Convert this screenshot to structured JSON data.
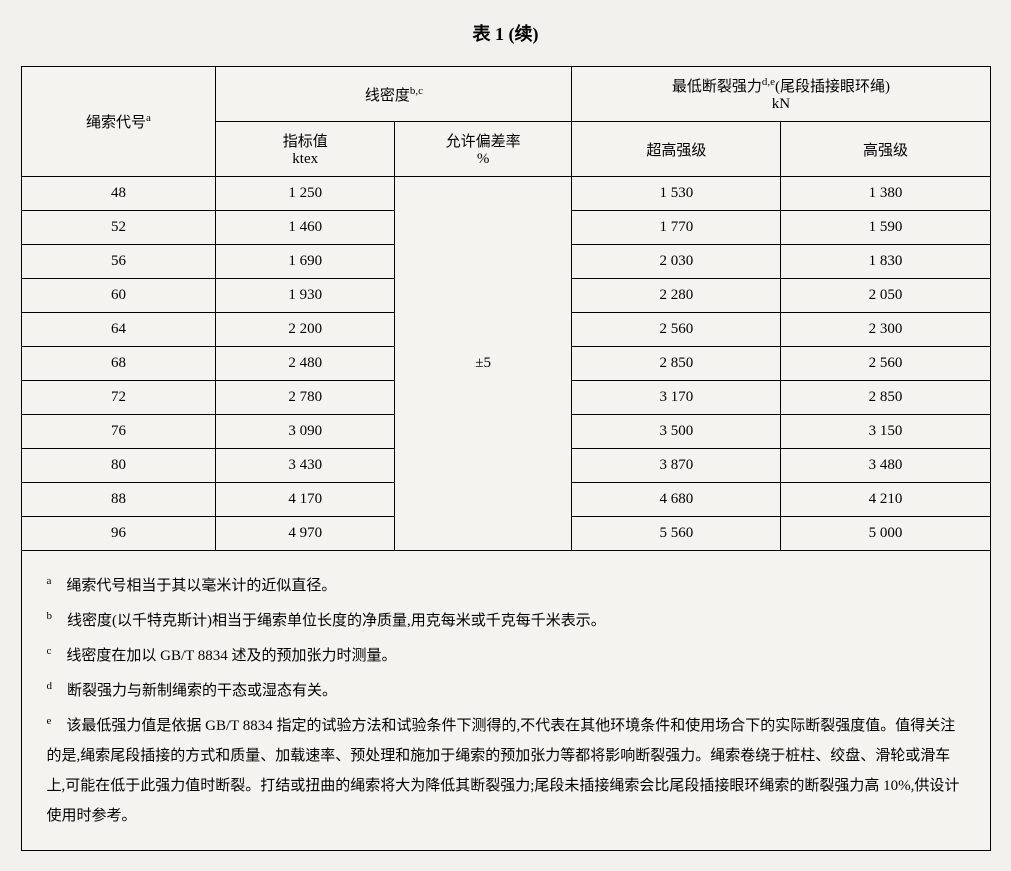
{
  "title": "表 1 (续)",
  "headers": {
    "col1": "绳索代号",
    "col1_sup": "a",
    "col2_group": "线密度",
    "col2_sup": "b,c",
    "col2_sub1": "指标值",
    "col2_sub1_unit": "ktex",
    "col2_sub2": "允许偏差率",
    "col2_sub2_unit": "%",
    "col3_group": "最低断裂强力",
    "col3_sup": "d,e",
    "col3_suffix": "(尾段插接眼环绳)",
    "col3_unit": "kN",
    "col3_sub1": "超高强级",
    "col3_sub2": "高强级"
  },
  "tolerance": "±5",
  "rows": [
    {
      "code": "48",
      "ktex": "1 250",
      "super_high": "1 530",
      "high": "1 380"
    },
    {
      "code": "52",
      "ktex": "1 460",
      "super_high": "1 770",
      "high": "1 590"
    },
    {
      "code": "56",
      "ktex": "1 690",
      "super_high": "2 030",
      "high": "1 830"
    },
    {
      "code": "60",
      "ktex": "1 930",
      "super_high": "2 280",
      "high": "2 050"
    },
    {
      "code": "64",
      "ktex": "2 200",
      "super_high": "2 560",
      "high": "2 300"
    },
    {
      "code": "68",
      "ktex": "2 480",
      "super_high": "2 850",
      "high": "2 560"
    },
    {
      "code": "72",
      "ktex": "2 780",
      "super_high": "3 170",
      "high": "2 850"
    },
    {
      "code": "76",
      "ktex": "3 090",
      "super_high": "3 500",
      "high": "3 150"
    },
    {
      "code": "80",
      "ktex": "3 430",
      "super_high": "3 870",
      "high": "3 480"
    },
    {
      "code": "88",
      "ktex": "4 170",
      "super_high": "4 680",
      "high": "4 210"
    },
    {
      "code": "96",
      "ktex": "4 970",
      "super_high": "5 560",
      "high": "5 000"
    }
  ],
  "notes": {
    "a": "绳索代号相当于其以毫米计的近似直径。",
    "b": "线密度(以千特克斯计)相当于绳索单位长度的净质量,用克每米或千克每千米表示。",
    "c": "线密度在加以 GB/T 8834 述及的预加张力时测量。",
    "d": "断裂强力与新制绳索的干态或湿态有关。",
    "e": "该最低强力值是依据 GB/T 8834 指定的试验方法和试验条件下测得的,不代表在其他环境条件和使用场合下的实际断裂强度值。值得关注的是,绳索尾段插接的方式和质量、加载速率、预处理和施加于绳索的预加张力等都将影响断裂强力。绳索卷绕于桩柱、绞盘、滑轮或滑车上,可能在低于此强力值时断裂。打结或扭曲的绳索将大为降低其断裂强力;尾段未插接绳索会比尾段插接眼环绳索的断裂强力高 10%,供设计使用时参考。"
  },
  "sup_labels": {
    "a": "a",
    "b": "b",
    "c": "c",
    "d": "d",
    "e": "e"
  }
}
